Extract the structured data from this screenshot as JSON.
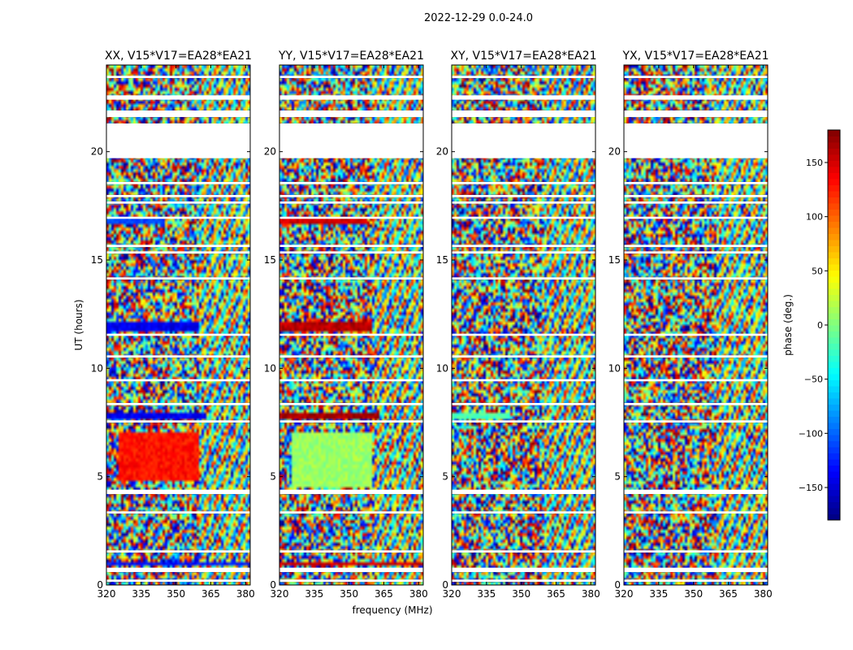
{
  "suptitle": "2022-12-29 0.0-24.0",
  "chart_data": {
    "type": "heatmap",
    "shared_xlabel": "frequency (MHz)",
    "shared_ylabel": "UT (hours)",
    "xlim": [
      320,
      382
    ],
    "ylim": [
      0,
      24
    ],
    "xticks": [
      320,
      335,
      350,
      365,
      380
    ],
    "yticks": [
      0,
      5,
      10,
      15,
      20
    ],
    "colorbar": {
      "label": "phase (deg.)",
      "range": [
        -180,
        180
      ],
      "ticks": [
        150,
        100,
        50,
        0,
        -50,
        -100,
        -150
      ],
      "tick_labels": [
        "150",
        "100",
        "50",
        "0",
        "−50",
        "−100",
        "−150"
      ],
      "colormap": "jet"
    },
    "flagged_ut_bands": [
      [
        19.7,
        21.3
      ],
      [
        21.6,
        21.9
      ],
      [
        22.4,
        22.6
      ],
      [
        23.4,
        23.5
      ],
      [
        18.5,
        18.6
      ],
      [
        17.9,
        18.0
      ],
      [
        17.6,
        17.7
      ],
      [
        16.9,
        17.0
      ],
      [
        15.6,
        15.7
      ],
      [
        15.3,
        15.4
      ],
      [
        14.1,
        14.2
      ],
      [
        11.5,
        11.6
      ],
      [
        10.5,
        10.6
      ],
      [
        9.4,
        9.5
      ],
      [
        8.3,
        8.4
      ],
      [
        7.5,
        7.6
      ],
      [
        4.2,
        4.4
      ],
      [
        3.3,
        3.4
      ],
      [
        1.5,
        1.6
      ],
      [
        0.6,
        0.8
      ],
      [
        0.15,
        0.25
      ]
    ],
    "panels": [
      {
        "title": "XX, V15*V17=EA28*EA21",
        "coherent_features": [
          {
            "ut_range": [
              16.6,
              16.9
            ],
            "freq_range": [
              320,
              345
            ],
            "phase": -110
          },
          {
            "ut_range": [
              11.7,
              12.1
            ],
            "freq_range": [
              320,
              360
            ],
            "phase": -140
          },
          {
            "ut_range": [
              7.7,
              8.0
            ],
            "freq_range": [
              320,
              363
            ],
            "phase": -140
          },
          {
            "ut_range": [
              4.8,
              7.0
            ],
            "freq_range": [
              325,
              360
            ],
            "phase": 130
          },
          {
            "ut_range": [
              0.85,
              1.0
            ],
            "freq_range": [
              320,
              382
            ],
            "phase": -130
          }
        ]
      },
      {
        "title": "YY, V15*V17=EA28*EA21",
        "coherent_features": [
          {
            "ut_range": [
              16.6,
              16.9
            ],
            "freq_range": [
              320,
              358
            ],
            "phase": 150
          },
          {
            "ut_range": [
              11.7,
              12.1
            ],
            "freq_range": [
              320,
              360
            ],
            "phase": 160
          },
          {
            "ut_range": [
              7.7,
              8.0
            ],
            "freq_range": [
              320,
              363
            ],
            "phase": 165
          },
          {
            "ut_range": [
              4.5,
              7.0
            ],
            "freq_range": [
              325,
              360
            ],
            "phase": 10
          },
          {
            "ut_range": [
              0.85,
              1.0
            ],
            "freq_range": [
              320,
              382
            ],
            "phase": 150
          }
        ]
      },
      {
        "title": "XY, V15*V17=EA28*EA21",
        "coherent_features": [
          {
            "ut_range": [
              7.7,
              8.0
            ],
            "freq_range": [
              320,
              345
            ],
            "phase": -20
          }
        ]
      },
      {
        "title": "YX, V15*V17=EA28*EA21",
        "coherent_features": []
      }
    ]
  }
}
